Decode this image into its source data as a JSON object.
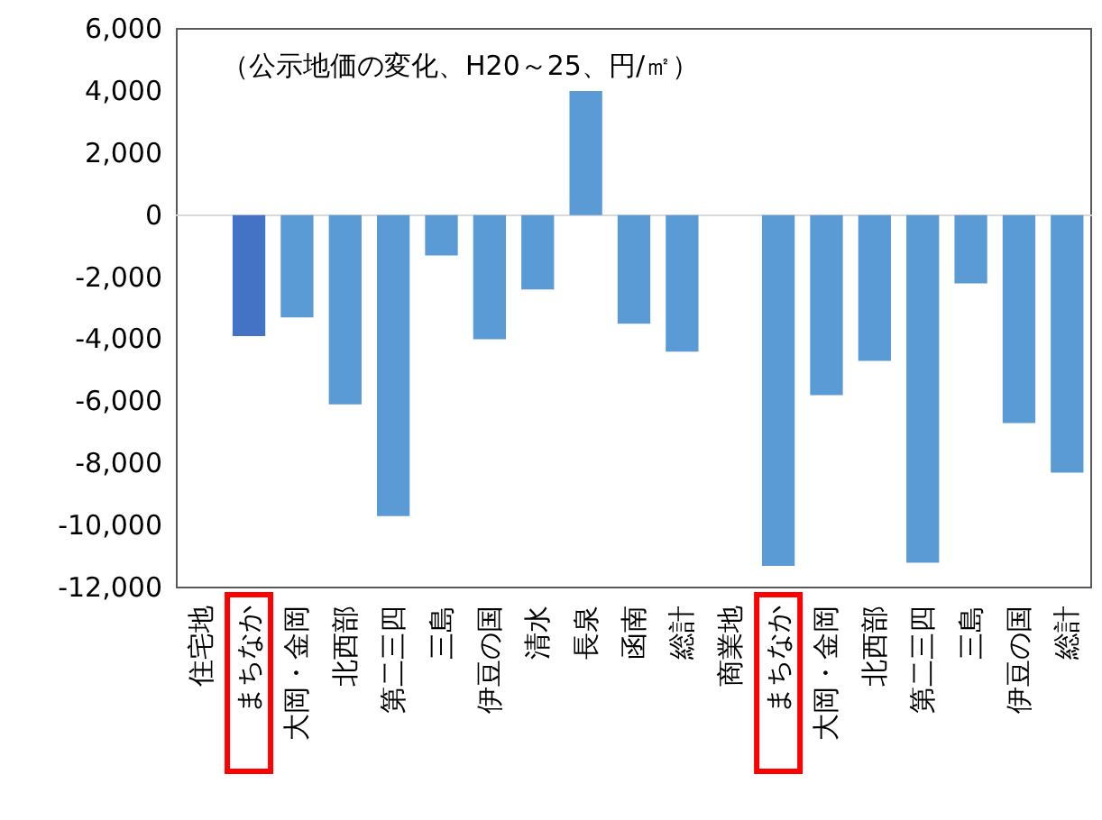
{
  "chart_data": {
    "type": "bar",
    "title": "（公示地価の変化、H20～25、円/㎡）",
    "categories": [
      "住宅地",
      "まちなか",
      "大岡・金岡",
      "北西部",
      "第二三四",
      "三島",
      "伊豆の国",
      "清水",
      "長泉",
      "函南",
      "総計",
      "商業地",
      "まちなか",
      "大岡・金岡",
      "北西部",
      "第二三四",
      "三島",
      "伊豆の国",
      "総計"
    ],
    "values": [
      null,
      -3900,
      -3300,
      -6100,
      -9700,
      -1300,
      -4000,
      -2400,
      4000,
      -3500,
      -4400,
      null,
      -11300,
      -5800,
      -4700,
      -11200,
      -2200,
      -6700,
      -8300
    ],
    "colors": [
      "#5b9bd5",
      "#4472c4",
      "#5b9bd5",
      "#5b9bd5",
      "#5b9bd5",
      "#5b9bd5",
      "#5b9bd5",
      "#5b9bd5",
      "#5b9bd5",
      "#5b9bd5",
      "#5b9bd5",
      "#5b9bd5",
      "#5b9bd5",
      "#5b9bd5",
      "#5b9bd5",
      "#5b9bd5",
      "#5b9bd5",
      "#5b9bd5",
      "#5b9bd5"
    ],
    "ylim": [
      -12000,
      6000
    ],
    "yticks": [
      {
        "value": -12000,
        "label": "-12,000"
      },
      {
        "value": -10000,
        "label": "-10,000"
      },
      {
        "value": -8000,
        "label": "-8,000"
      },
      {
        "value": -6000,
        "label": "-6,000"
      },
      {
        "value": -4000,
        "label": "-4,000"
      },
      {
        "value": -2000,
        "label": "-2,000"
      },
      0,
      {
        "value": 2000,
        "label": "2,000"
      },
      {
        "value": 4000,
        "label": "4,000"
      },
      {
        "value": 6000,
        "label": "6,000"
      }
    ]
  }
}
